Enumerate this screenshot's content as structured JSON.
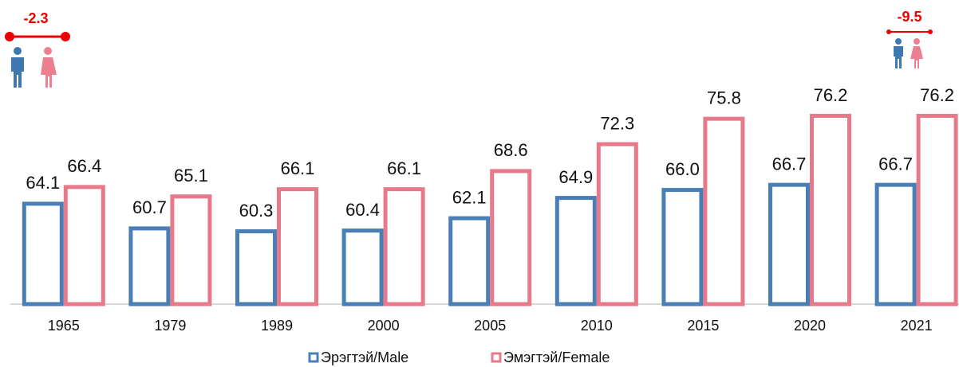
{
  "chart_data": {
    "type": "bar",
    "categories": [
      "1965",
      "1979",
      "1989",
      "2000",
      "2005",
      "2010",
      "2015",
      "2020",
      "2021"
    ],
    "series": [
      {
        "name": "Эрэгтэй/Male",
        "color": "#4a7fb5",
        "values": [
          64.1,
          60.7,
          60.3,
          60.4,
          62.1,
          64.9,
          66.0,
          66.7,
          66.7
        ],
        "value_labels": [
          "64.1",
          "60.7",
          "60.3",
          "60.4",
          "62.1",
          "64.9",
          "66.0",
          "66.7",
          "66.7"
        ]
      },
      {
        "name": "Эмэгтэй/Female",
        "color": "#e8798a",
        "values": [
          66.4,
          65.1,
          66.1,
          66.1,
          68.6,
          72.3,
          75.8,
          76.2,
          76.2
        ],
        "value_labels": [
          "66.4",
          "65.1",
          "66.1",
          "66.1",
          "68.6",
          "72.3",
          "75.8",
          "76.2",
          "76.2"
        ]
      }
    ],
    "ylim": [
      50,
      83
    ],
    "annotations": [
      {
        "text": "-2.3"
      },
      {
        "text": "-9.5"
      }
    ]
  }
}
